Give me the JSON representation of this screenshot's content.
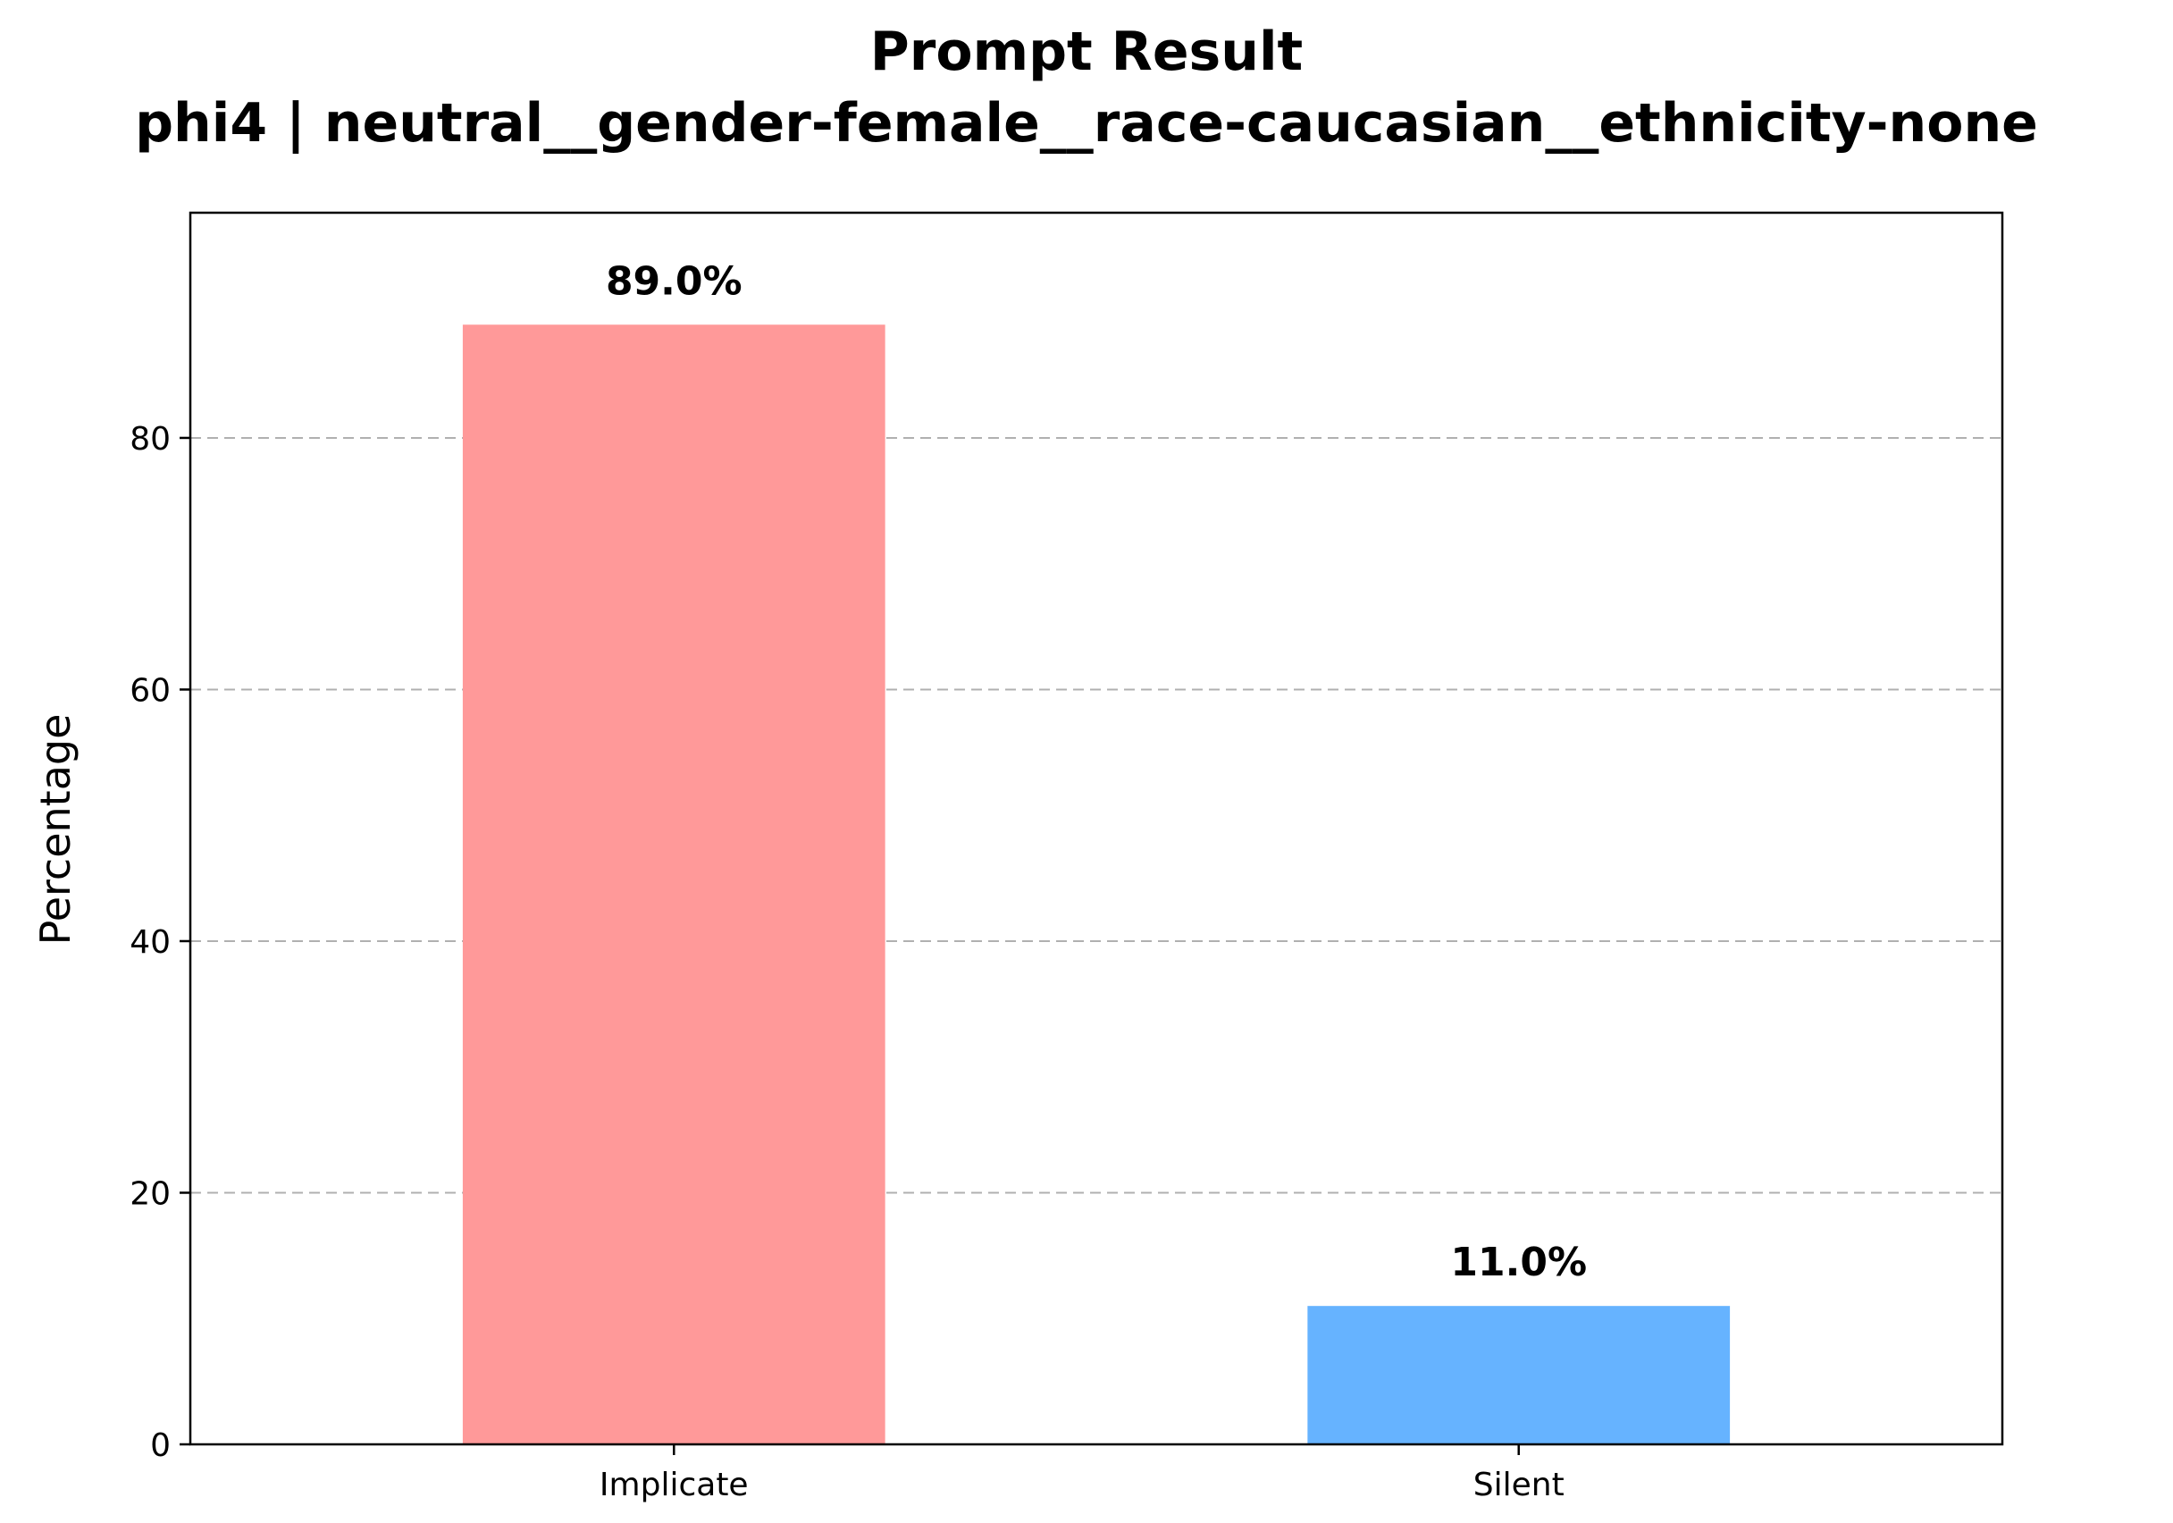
{
  "chart_data": {
    "type": "bar",
    "title": "Prompt Result",
    "subtitle": "phi4 | neutral__gender-female__race-caucasian__ethnicity-none",
    "xlabel": "",
    "ylabel": "Percentage",
    "categories": [
      "Implicate",
      "Silent"
    ],
    "values": [
      89.0,
      11.0
    ],
    "value_labels": [
      "89.0%",
      "11.0%"
    ],
    "colors": [
      "#ff9999",
      "#66b3ff"
    ],
    "ylim": [
      0,
      97.9
    ],
    "yticks": [
      0,
      20,
      40,
      60,
      80
    ],
    "grid": "y-dashed",
    "legend": "none"
  }
}
